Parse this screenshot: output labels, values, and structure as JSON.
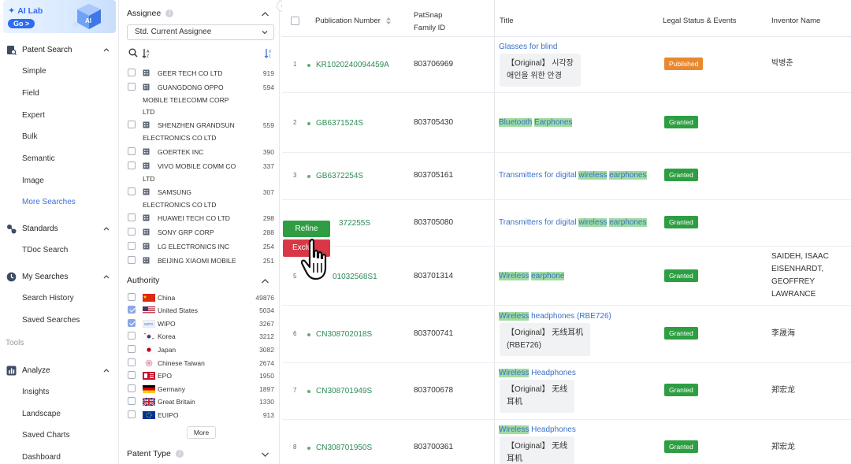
{
  "nav": {
    "ai_lab": "AI Lab",
    "ai_go": "Go >",
    "patent_search": {
      "label": "Patent Search",
      "items": [
        "Simple",
        "Field",
        "Expert",
        "Bulk",
        "Semantic",
        "Image",
        "More Searches"
      ]
    },
    "standards": {
      "label": "Standards",
      "items": [
        "TDoc Search"
      ]
    },
    "my_searches": {
      "label": "My Searches",
      "items": [
        "Search History",
        "Saved Searches"
      ]
    },
    "tools_label": "Tools",
    "analyze": {
      "label": "Analyze",
      "items": [
        "Insights",
        "Landscape",
        "Saved Charts",
        "Dashboard"
      ]
    },
    "accent_color": "#3b6fd8"
  },
  "filter": {
    "assignee": {
      "title": "Assignee",
      "select_value": "Std. Current Assignee",
      "rows": [
        {
          "name": "GEER TECH CO LTD",
          "count": "919"
        },
        {
          "name": "GUANGDONG OPPO",
          "cont": "MOBILE TELECOMM CORP",
          "cont2": "LTD",
          "count": "594"
        },
        {
          "name": "SHENZHEN GRANDSUN",
          "cont": "ELECTRONICS CO LTD",
          "count": "559"
        },
        {
          "name": "GOERTEK INC",
          "count": "390"
        },
        {
          "name": "VIVO MOBILE COMM CO",
          "cont": "LTD",
          "count": "337"
        },
        {
          "name": "SAMSUNG",
          "cont": "ELECTRONICS CO LTD",
          "count": "307"
        },
        {
          "name": "HUAWEI TECH CO LTD",
          "count": "298"
        },
        {
          "name": "SONY GRP CORP",
          "count": "288"
        },
        {
          "name": "LG ELECTRONICS INC",
          "count": "254"
        },
        {
          "name": "BEIJING XIAOMI MOBILE",
          "count": "251"
        }
      ]
    },
    "authority": {
      "title": "Authority",
      "rows": [
        {
          "name": "China",
          "count": "49876",
          "checked": false,
          "flag": "cn"
        },
        {
          "name": "United States",
          "count": "5034",
          "checked": true,
          "flag": "us"
        },
        {
          "name": "WIPO",
          "count": "3267",
          "checked": true,
          "flag": "wipo"
        },
        {
          "name": "Korea",
          "count": "3212",
          "checked": false,
          "flag": "kr"
        },
        {
          "name": "Japan",
          "count": "3082",
          "checked": false,
          "flag": "jp"
        },
        {
          "name": "Chinese Taiwan",
          "count": "2674",
          "checked": false,
          "flag": "tw"
        },
        {
          "name": "EPO",
          "count": "1950",
          "checked": false,
          "flag": "epo"
        },
        {
          "name": "Germany",
          "count": "1897",
          "checked": false,
          "flag": "de"
        },
        {
          "name": "Great Britain",
          "count": "1330",
          "checked": false,
          "flag": "gb"
        },
        {
          "name": "EUIPO",
          "count": "913",
          "checked": false,
          "flag": "eu"
        }
      ],
      "more_label": "More"
    },
    "patent_type": {
      "title": "Patent Type"
    }
  },
  "table": {
    "headers": {
      "pub_no": "Publication Number",
      "family_1": "PatSnap",
      "family_2": "Family ID",
      "title": "Title",
      "legal": "Legal Status & Events",
      "inventor": "Inventor Name"
    },
    "rows": [
      {
        "n": "1",
        "pub": "KR1020240094459A",
        "family": "803706969",
        "title": "Glasses for blind",
        "orig1": "【Original】 시각장",
        "orig2": "애인을 위한 안경",
        "status": "Published",
        "inventor": "박병춘"
      },
      {
        "n": "2",
        "pub": "GB6371524S",
        "family": "803705430",
        "t1": "Bluetooth",
        "t2": "Earphones",
        "status": "Granted"
      },
      {
        "n": "3",
        "pub": "GB6372254S",
        "family": "803705161",
        "t0": "Transmitters for digital ",
        "t1": "wireless",
        "t2": "earphones",
        "status": "Granted"
      },
      {
        "n": "4",
        "pub_visible": "372255S",
        "family": "803705080",
        "t0": "Transmitters for digital ",
        "t1": "wireless",
        "t2": "earphones",
        "status": "Granted"
      },
      {
        "n": "5",
        "pub_visible": "01032568S1",
        "family": "803701314",
        "t1": "Wireless",
        "t2": "earphone",
        "status": "Granted",
        "inv1": "SAIDEH, ISAAC",
        "inv2": "EISENHARDT,",
        "inv3": "GEOFFREY",
        "inv4": "LAWRANCE"
      },
      {
        "n": "6",
        "pub": "CN308702018S",
        "family": "803700741",
        "t1": "Wireless",
        "t_rest": " headphones (RBE726)",
        "orig1": "【Original】 无线耳机",
        "orig2": "(RBE726)",
        "status": "Granted",
        "inventor": "李晟海"
      },
      {
        "n": "7",
        "pub": "CN308701949S",
        "family": "803700678",
        "t1": "Wireless",
        "t_rest": " Headphones",
        "orig1": "【Original】 无线",
        "orig2": "耳机",
        "status": "Granted",
        "inventor": "郑宏龙"
      },
      {
        "n": "8",
        "pub": "CN308701950S",
        "family": "803700361",
        "t1": "Wireless",
        "t_rest": " Headphones",
        "orig1": "【Original】 无线",
        "orig2": "耳机",
        "status": "Granted",
        "inventor": "郑宏龙"
      }
    ],
    "status_colors": {
      "Granted": "#2e9e43",
      "Published": "#e8892f"
    },
    "highlight_color": "#9fdca0"
  },
  "context_menu": {
    "refine": "Refine",
    "exclude": "Exclu"
  }
}
